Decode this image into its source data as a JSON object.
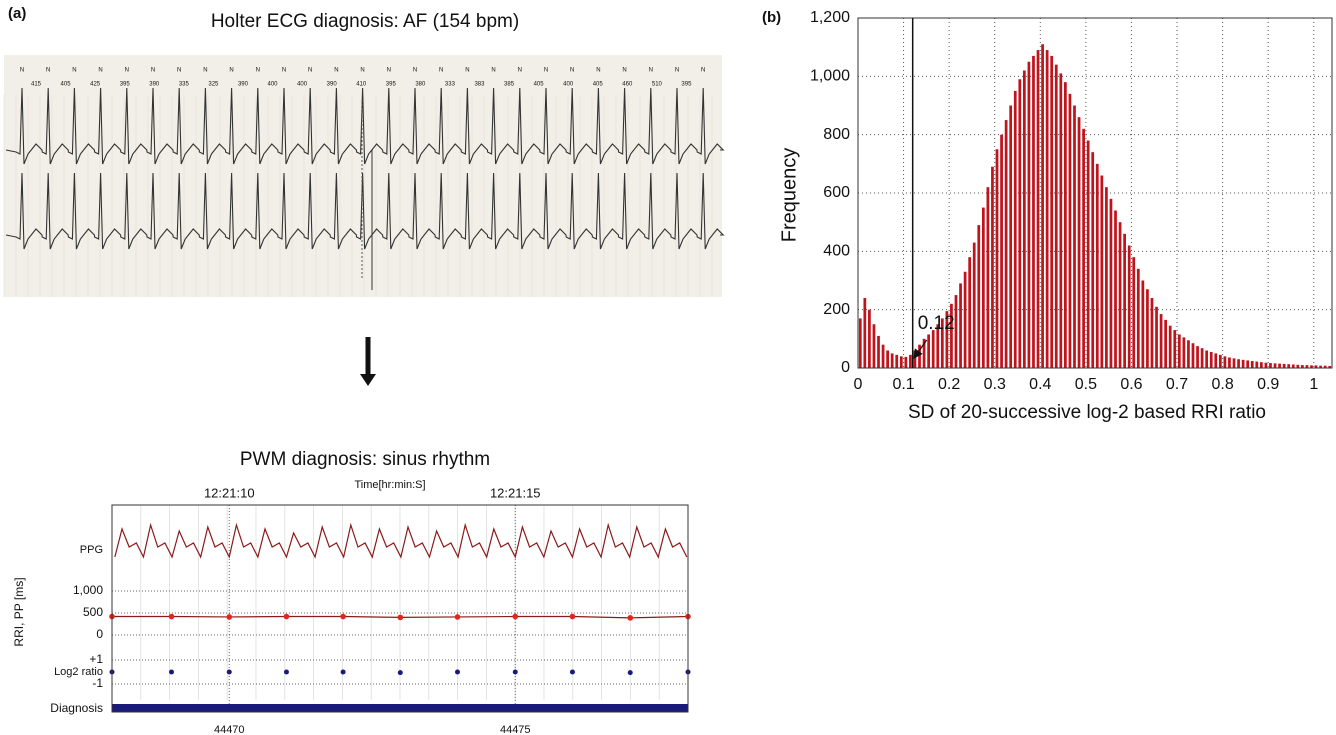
{
  "panel_a": {
    "label": "(a)",
    "title": "Holter ECG diagnosis: AF (154 bpm)",
    "beat_marker": "N",
    "rr_labels": [
      "415",
      "405",
      "425",
      "395",
      "390",
      "335",
      "325",
      "390",
      "400",
      "400",
      "390",
      "410",
      "395",
      "380",
      "333",
      "383",
      "385",
      "405",
      "400",
      "405",
      "460",
      "510",
      "395"
    ]
  },
  "chart_data": [
    {
      "type": "histogram",
      "panel_label": "(b)",
      "xlabel": "SD of 20-successive log-2 based RRI ratio",
      "ylabel": "Frequency",
      "color": "#c0141c",
      "grid": true,
      "bins": [
        0,
        0.01,
        0.02,
        0.03,
        0.04,
        0.05,
        0.06,
        0.07,
        0.08,
        0.09,
        0.1,
        0.11,
        0.12,
        0.13,
        0.14,
        0.15,
        0.16,
        0.17,
        0.18,
        0.19,
        0.2,
        0.21,
        0.22,
        0.23,
        0.24,
        0.25,
        0.26,
        0.27,
        0.28,
        0.29,
        0.3,
        0.31,
        0.32,
        0.33,
        0.34,
        0.35,
        0.36,
        0.37,
        0.38,
        0.39,
        0.4,
        0.41,
        0.42,
        0.43,
        0.44,
        0.45,
        0.46,
        0.47,
        0.48,
        0.49,
        0.5,
        0.51,
        0.52,
        0.53,
        0.54,
        0.55,
        0.56,
        0.57,
        0.58,
        0.59,
        0.6,
        0.61,
        0.62,
        0.63,
        0.64,
        0.65,
        0.66,
        0.67,
        0.68,
        0.69,
        0.7,
        0.71,
        0.72,
        0.73,
        0.74,
        0.75,
        0.76,
        0.77,
        0.78,
        0.79,
        0.8,
        0.81,
        0.82,
        0.83,
        0.84,
        0.85,
        0.86,
        0.87,
        0.88,
        0.89,
        0.9,
        0.91,
        0.92,
        0.93,
        0.94,
        0.95,
        0.96,
        0.97,
        0.98,
        0.99,
        1,
        1.01,
        1.02,
        1.03,
        1.04
      ],
      "counts": [
        170,
        240,
        200,
        150,
        110,
        80,
        60,
        50,
        45,
        40,
        38,
        45,
        60,
        80,
        100,
        115,
        130,
        150,
        170,
        195,
        220,
        250,
        290,
        330,
        380,
        430,
        490,
        550,
        620,
        690,
        750,
        800,
        850,
        900,
        950,
        990,
        1020,
        1050,
        1070,
        1090,
        1110,
        1090,
        1070,
        1040,
        1010,
        980,
        940,
        900,
        860,
        820,
        780,
        740,
        700,
        660,
        620,
        580,
        540,
        500,
        460,
        420,
        380,
        340,
        300,
        270,
        240,
        210,
        185,
        165,
        145,
        130,
        115,
        105,
        95,
        85,
        75,
        68,
        60,
        55,
        50,
        45,
        40,
        36,
        33,
        30,
        28,
        26,
        24,
        22,
        20,
        18,
        17,
        16,
        15,
        14,
        13,
        12,
        11,
        10,
        10,
        9,
        9,
        8,
        8,
        7
      ],
      "xlim": [
        0,
        1.04
      ],
      "xticks": [
        0,
        0.1,
        0.2,
        0.3,
        0.4,
        0.5,
        0.6,
        0.7,
        0.8,
        0.9,
        1
      ],
      "ylim": [
        0,
        1200
      ],
      "yticks": [
        0,
        200,
        400,
        600,
        800,
        {
          "value": 1000,
          "label": "1,000"
        },
        {
          "value": 1200,
          "label": "1,200"
        }
      ],
      "threshold": 0.12
    },
    {
      "type": "strip",
      "title": "PWM diagnosis: sinus rhythm",
      "time_axis_label": "Time[hr:min:S]",
      "xlim": [
        44467.95,
        44478.02
      ],
      "xticks": [
        44470,
        44475
      ],
      "time_ticks": [
        {
          "value": 44470,
          "label": "12:21:10"
        },
        {
          "value": 44475,
          "label": "12:21:15"
        }
      ],
      "ppg": {
        "label": "PPG",
        "color": "#8b1a1a",
        "x": [
          44468,
          44468.125,
          44468.25,
          44468.375,
          44468.5,
          44468.625,
          44468.75,
          44468.875,
          44469,
          44469.125,
          44469.25,
          44469.375,
          44469.5,
          44469.625,
          44469.75,
          44469.875,
          44470,
          44470.125,
          44470.25,
          44470.375,
          44470.5,
          44470.625,
          44470.75,
          44470.875,
          44471,
          44471.125,
          44471.25,
          44471.375,
          44471.5,
          44471.625,
          44471.75,
          44471.875,
          44472,
          44472.125,
          44472.25,
          44472.375,
          44472.5,
          44472.625,
          44472.75,
          44472.875,
          44473,
          44473.125,
          44473.25,
          44473.375,
          44473.5,
          44473.625,
          44473.75,
          44473.875,
          44474,
          44474.125,
          44474.25,
          44474.375,
          44474.5,
          44474.625,
          44474.75,
          44474.875,
          44475,
          44475.125,
          44475.25,
          44475.375,
          44475.5,
          44475.625,
          44475.75,
          44475.875,
          44476,
          44476.125,
          44476.25,
          44476.375,
          44476.5,
          44476.625,
          44476.75,
          44476.875,
          44477,
          44477.125,
          44477.25,
          44477.375,
          44477.5,
          44477.625,
          44477.75,
          44477.875,
          44478
        ],
        "values": [
          0.2,
          0.9,
          0.45,
          0.55,
          0.2,
          1.0,
          0.45,
          0.55,
          0.2,
          0.85,
          0.45,
          0.55,
          0.2,
          0.95,
          0.45,
          0.55,
          0.2,
          1.0,
          0.45,
          0.55,
          0.2,
          0.9,
          0.45,
          0.55,
          0.2,
          0.8,
          0.45,
          0.55,
          0.2,
          0.95,
          0.45,
          0.55,
          0.2,
          1.0,
          0.45,
          0.55,
          0.2,
          0.9,
          0.45,
          0.55,
          0.2,
          0.95,
          0.45,
          0.55,
          0.2,
          0.85,
          0.45,
          0.55,
          0.2,
          1.0,
          0.45,
          0.55,
          0.2,
          0.9,
          0.45,
          0.55,
          0.2,
          0.95,
          0.45,
          0.55,
          0.2,
          0.85,
          0.45,
          0.55,
          0.2,
          0.9,
          0.45,
          0.55,
          0.2,
          1.0,
          0.45,
          0.55,
          0.2,
          0.95,
          0.45,
          0.55,
          0.2,
          0.9,
          0.45,
          0.55,
          0.2
        ]
      },
      "rri": {
        "label": "RRI, PP [ms]",
        "color": "#e8221c",
        "line_color": "#8b1a1a",
        "ylim": [
          -100,
          1100
        ],
        "yticks": [
          0,
          500,
          {
            "value": 1000,
            "label": "1,000"
          }
        ],
        "x": [
          44467.95,
          44468.99,
          44470,
          44471,
          44471.99,
          44472.99,
          44473.99,
          44475,
          44476,
          44477.01,
          44478.02
        ],
        "values": [
          420,
          420,
          410,
          420,
          420,
          400,
          410,
          420,
          420,
          390,
          420
        ]
      },
      "log2": {
        "label": "Log2 ratio",
        "color": "#1a1a7a",
        "ylim": [
          -1.5,
          1.5
        ],
        "yticks": [
          {
            "value": 1,
            "label": "+1"
          },
          -1
        ],
        "x": [
          44467.95,
          44468.99,
          44470,
          44471,
          44471.99,
          44472.99,
          44473.99,
          44475,
          44476,
          44477.01,
          44478.02
        ],
        "values": [
          0,
          0,
          0,
          0,
          0,
          -0.05,
          0,
          0,
          0,
          -0.05,
          0
        ]
      },
      "diagnosis": {
        "label": "Diagnosis",
        "color": "#1a1a7a"
      }
    }
  ]
}
